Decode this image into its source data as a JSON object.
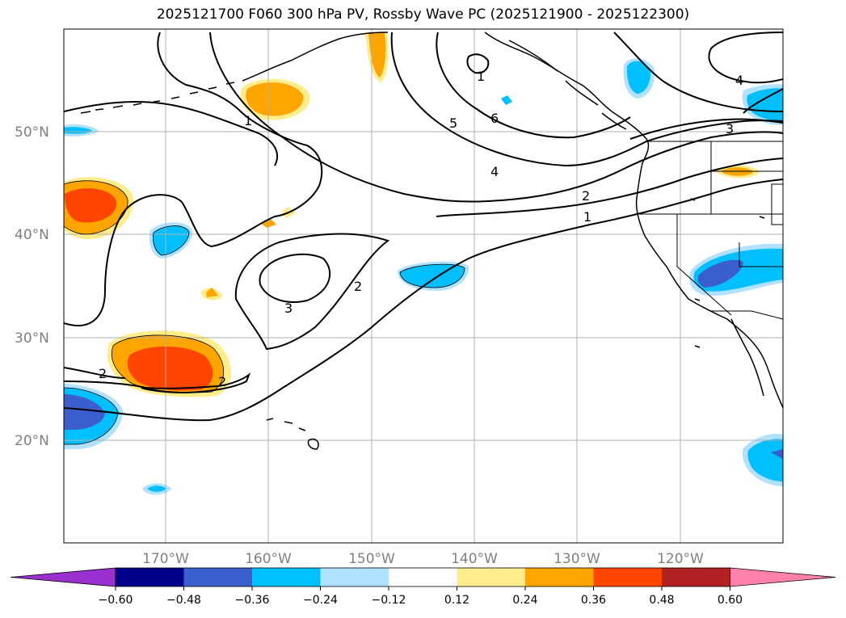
{
  "title": "2025121700 F060 300 hPa PV, Rossby Wave PC (2025121900 - 2025122300)",
  "lat_labels": [
    "50°N",
    "40°N",
    "30°N",
    "20°N"
  ],
  "lon_labels": [
    "170°W",
    "160°W",
    "150°W",
    "140°W",
    "130°W",
    "120°W"
  ],
  "contour_labels": {
    "c1a": "1",
    "c1b": "1",
    "c1c": "1",
    "c2a": "2",
    "c2b": "2",
    "c2c": "2",
    "c2d": "2",
    "c3a": "3",
    "c3b": "3",
    "c4a": "4",
    "c4b": "4",
    "c5": "5",
    "c6": "6"
  },
  "colorbar": {
    "ticks": [
      "−0.60",
      "−0.48",
      "−0.36",
      "−0.24",
      "−0.12",
      "0.12",
      "0.24",
      "0.36",
      "0.48",
      "0.60"
    ],
    "colors": [
      "#9b30d0",
      "#00008b",
      "#3a5fcd",
      "#00bfff",
      "#b0e2ff",
      "#ffffff",
      "#ffec8b",
      "#ffa500",
      "#ff4500",
      "#b22222",
      "#ff82ab"
    ]
  },
  "palette": {
    "light_blue": "#b0e2ff",
    "blue": "#00bfff",
    "royal_blue": "#3a5fcd",
    "light_yellow": "#ffec8b",
    "orange": "#ffa500",
    "red_orange": "#ff4500"
  }
}
